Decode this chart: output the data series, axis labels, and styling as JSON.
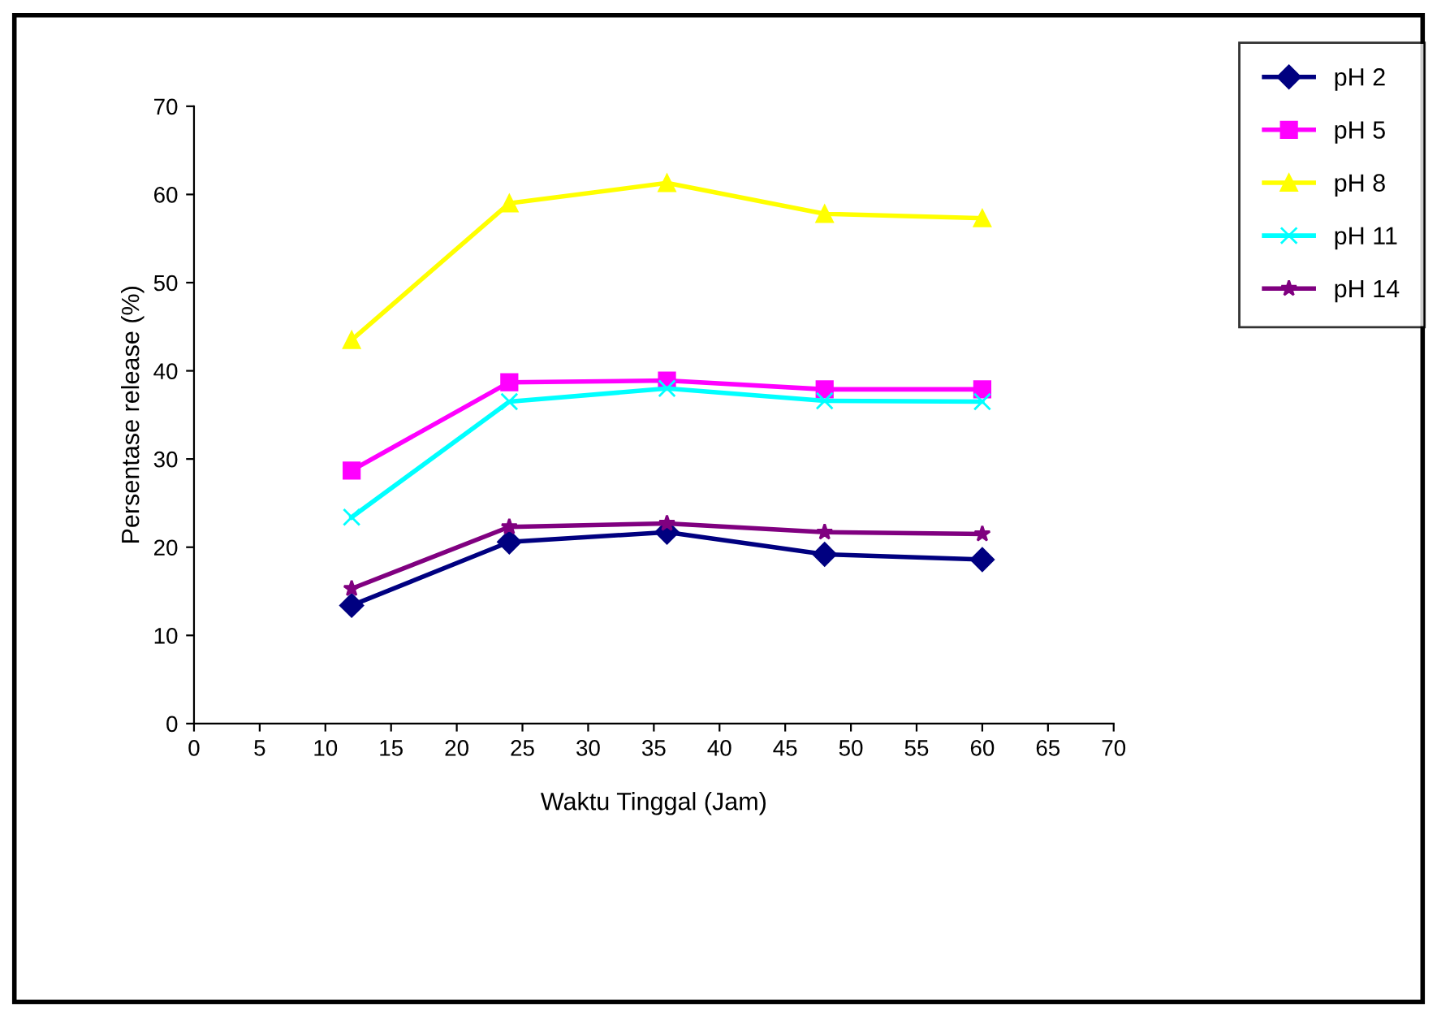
{
  "chart_data": {
    "type": "line",
    "xlabel": "Waktu Tinggal (Jam)",
    "ylabel": "Persentase release (%)",
    "x": [
      12,
      24,
      36,
      48,
      60
    ],
    "series": [
      {
        "name": "pH 2",
        "color": "#000080",
        "marker": "diamond",
        "values": [
          13.4,
          20.6,
          21.7,
          19.2,
          18.6
        ]
      },
      {
        "name": "pH 5",
        "color": "#ff00ff",
        "marker": "square",
        "values": [
          28.7,
          38.7,
          38.9,
          37.9,
          37.9
        ]
      },
      {
        "name": "pH 8",
        "color": "#ffff00",
        "marker": "triangle",
        "values": [
          43.5,
          59,
          61.3,
          57.8,
          57.3
        ]
      },
      {
        "name": "pH 11",
        "color": "#00ffff",
        "marker": "cross",
        "values": [
          23.4,
          36.5,
          38,
          36.6,
          36.5
        ]
      },
      {
        "name": "pH 14",
        "color": "#800080",
        "marker": "star",
        "values": [
          15.3,
          22.3,
          22.7,
          21.7,
          21.5
        ]
      }
    ],
    "xlim": [
      0,
      70
    ],
    "xticks": [
      0,
      5,
      10,
      15,
      20,
      25,
      30,
      35,
      40,
      45,
      50,
      55,
      60,
      65,
      70
    ],
    "ylim": [
      0,
      70
    ],
    "yticks": [
      0,
      10,
      20,
      30,
      40,
      50,
      60,
      70
    ],
    "grid": false,
    "legend": "top right"
  }
}
